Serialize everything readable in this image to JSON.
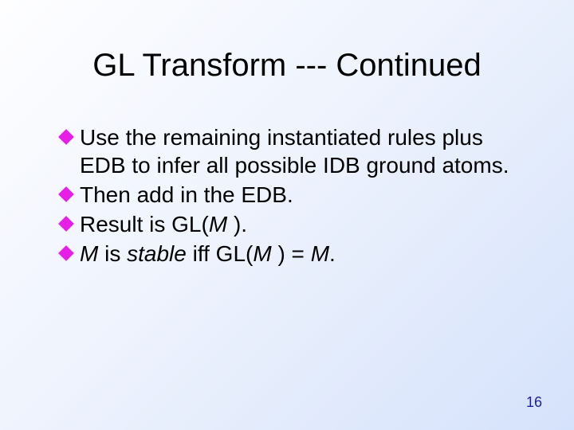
{
  "slide": {
    "title": "GL Transform --- Continued",
    "page_number": "16",
    "background_gradient": {
      "from": "#fefeff",
      "mid": "#eef3fd",
      "to": "#d5e2fb"
    },
    "bullet_color": "#e61ee6",
    "title_fontsize": 40,
    "body_fontsize": 28,
    "page_number_color": "#1e1ea8",
    "bullets": [
      {
        "runs": [
          {
            "text": "Use the remaining instantiated rules plus EDB to infer all possible IDB ground atoms.",
            "italic": false
          }
        ]
      },
      {
        "runs": [
          {
            "text": "Then add in the EDB.",
            "italic": false
          }
        ]
      },
      {
        "runs": [
          {
            "text": "Result is GL(",
            "italic": false
          },
          {
            "text": "M ",
            "italic": true
          },
          {
            "text": ").",
            "italic": false
          }
        ]
      },
      {
        "runs": [
          {
            "text": "M ",
            "italic": true
          },
          {
            "text": " is ",
            "italic": false
          },
          {
            "text": "stable ",
            "italic": true
          },
          {
            "text": " iff GL(",
            "italic": false
          },
          {
            "text": "M ",
            "italic": true
          },
          {
            "text": ") = ",
            "italic": false
          },
          {
            "text": "M",
            "italic": true
          },
          {
            "text": ".",
            "italic": false
          }
        ]
      }
    ]
  }
}
